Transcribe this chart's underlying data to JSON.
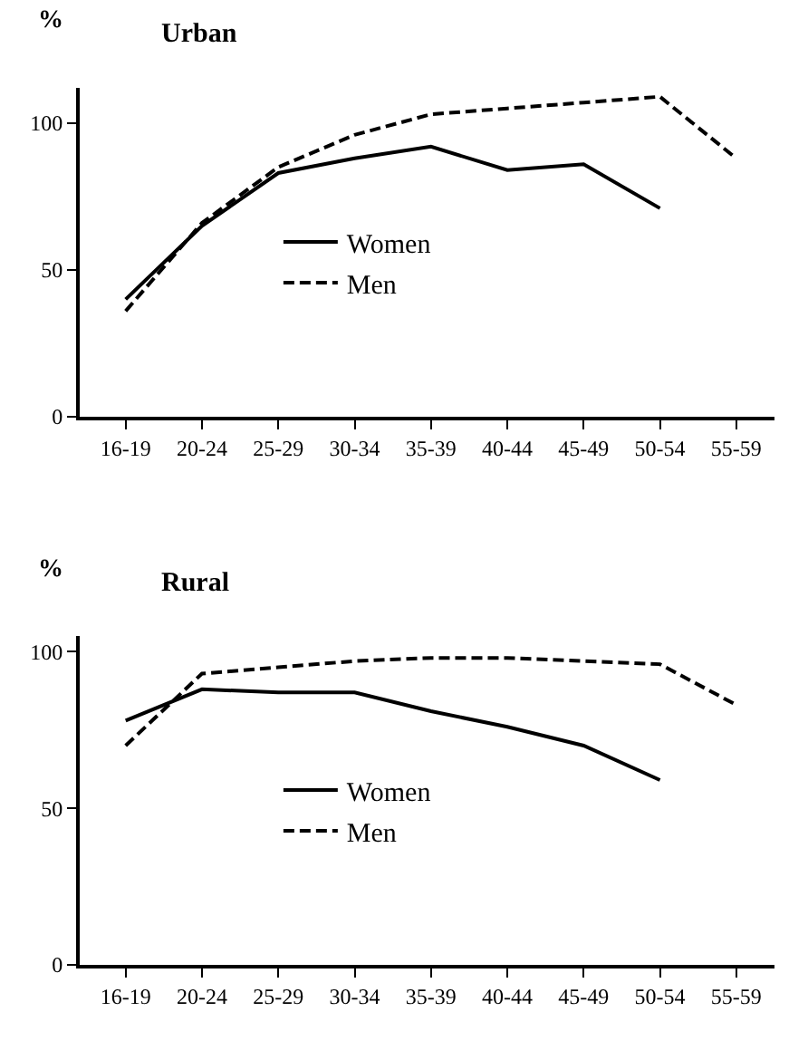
{
  "chart_data": [
    {
      "type": "line",
      "title": "Urban",
      "ylabel": "%",
      "categories": [
        "16-19",
        "20-24",
        "25-29",
        "30-34",
        "35-39",
        "40-44",
        "45-49",
        "50-54",
        "55-59"
      ],
      "series": [
        {
          "name": "Women",
          "color": "#000000",
          "line_style": "solid",
          "values": [
            40,
            65,
            83,
            88,
            92,
            84,
            86,
            71,
            null
          ]
        },
        {
          "name": "Men",
          "color": "#000000",
          "line_style": "dashed",
          "values": [
            36,
            66,
            85,
            96,
            103,
            105,
            107,
            109,
            88
          ]
        }
      ],
      "ylim": [
        0,
        112
      ],
      "yticks": [
        0,
        50,
        100
      ],
      "legend": "center",
      "marker": "none"
    },
    {
      "type": "line",
      "title": "Rural",
      "ylabel": "%",
      "categories": [
        "16-19",
        "20-24",
        "25-29",
        "30-34",
        "35-39",
        "40-44",
        "45-49",
        "50-54",
        "55-59"
      ],
      "series": [
        {
          "name": "Women",
          "color": "#000000",
          "line_style": "solid",
          "values": [
            78,
            88,
            87,
            87,
            81,
            76,
            70,
            59,
            null
          ]
        },
        {
          "name": "Men",
          "color": "#000000",
          "line_style": "dashed",
          "values": [
            70,
            93,
            95,
            97,
            98,
            98,
            97,
            96,
            83
          ]
        }
      ],
      "ylim": [
        0,
        105
      ],
      "yticks": [
        0,
        50,
        100
      ],
      "legend": "center",
      "marker": "none"
    }
  ]
}
